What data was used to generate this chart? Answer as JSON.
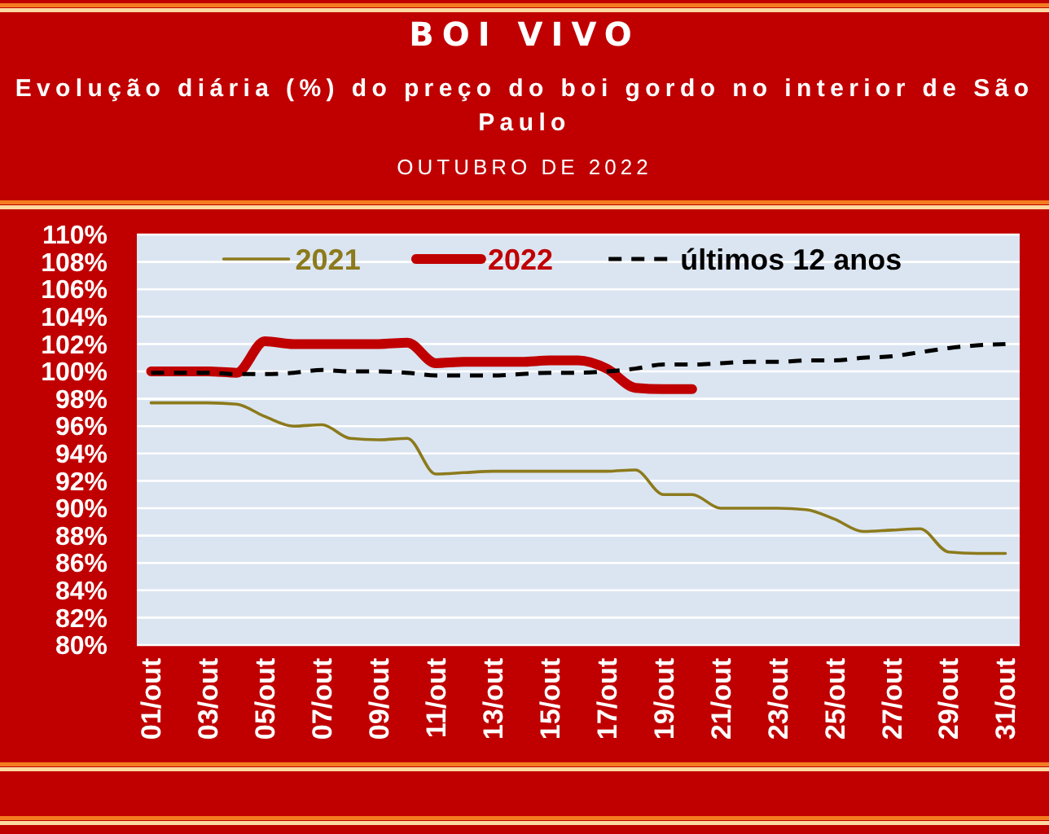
{
  "chart_data": {
    "type": "line",
    "title": "BOI VIVO",
    "subtitle": "Evolução diária (%) do preço do boi gordo no interior de São Paulo",
    "annotations": [
      "OUTUBRO DE 2022"
    ],
    "categories": [
      "01/out",
      null,
      "03/out",
      null,
      "05/out",
      null,
      "07/out",
      null,
      "09/out",
      null,
      "11/out",
      null,
      "13/out",
      null,
      "15/out",
      null,
      "17/out",
      null,
      "19/out",
      null,
      "21/out",
      null,
      "23/out",
      null,
      "25/out",
      null,
      "27/out",
      null,
      "29/out",
      null,
      "31/out"
    ],
    "series": [
      {
        "name": "2021",
        "color": "#8c7a1c",
        "line_style": "solid",
        "values": [
          97.7,
          97.7,
          97.7,
          97.6,
          96.7,
          96.0,
          96.1,
          95.1,
          95.0,
          95.1,
          92.5,
          92.6,
          92.7,
          92.7,
          92.7,
          92.7,
          92.7,
          92.8,
          91.0,
          91.0,
          90.0,
          90.0,
          90.0,
          89.9,
          89.2,
          88.3,
          88.4,
          88.5,
          86.8,
          86.7,
          86.7
        ]
      },
      {
        "name": "2022",
        "color": "#c00000",
        "line_style": "solid",
        "values": [
          100.0,
          100.0,
          100.0,
          99.9,
          102.2,
          102.0,
          102.0,
          102.0,
          102.0,
          102.1,
          100.6,
          100.7,
          100.7,
          100.7,
          100.8,
          100.8,
          100.2,
          98.8,
          98.7,
          98.7,
          null,
          null,
          null,
          null,
          null,
          null,
          null,
          null,
          null,
          null,
          null
        ]
      },
      {
        "name": "últimos 12 anos",
        "color": "#000000",
        "line_style": "dashed",
        "values": [
          99.9,
          99.9,
          99.9,
          99.8,
          99.8,
          99.9,
          100.1,
          100.0,
          100.0,
          99.9,
          99.7,
          99.7,
          99.7,
          99.8,
          99.9,
          99.9,
          100.0,
          100.2,
          100.5,
          100.5,
          100.6,
          100.7,
          100.7,
          100.8,
          100.8,
          101.0,
          101.1,
          101.4,
          101.7,
          101.9,
          102.0
        ]
      }
    ],
    "ylim": [
      80,
      110
    ],
    "yticks": [
      {
        "value": 80,
        "label": "80%"
      },
      {
        "value": 82,
        "label": "82%"
      },
      {
        "value": 84,
        "label": "84%"
      },
      {
        "value": 86,
        "label": "86%"
      },
      {
        "value": 88,
        "label": "88%"
      },
      {
        "value": 90,
        "label": "90%"
      },
      {
        "value": 92,
        "label": "92%"
      },
      {
        "value": 94,
        "label": "94%"
      },
      {
        "value": 96,
        "label": "96%"
      },
      {
        "value": 98,
        "label": "98%"
      },
      {
        "value": 100,
        "label": "100%"
      },
      {
        "value": 102,
        "label": "102%"
      },
      {
        "value": 104,
        "label": "104%"
      },
      {
        "value": 106,
        "label": "106%"
      },
      {
        "value": 108,
        "label": "108%"
      },
      {
        "value": 110,
        "label": "110%"
      }
    ],
    "grid": "y",
    "legend": "top"
  }
}
